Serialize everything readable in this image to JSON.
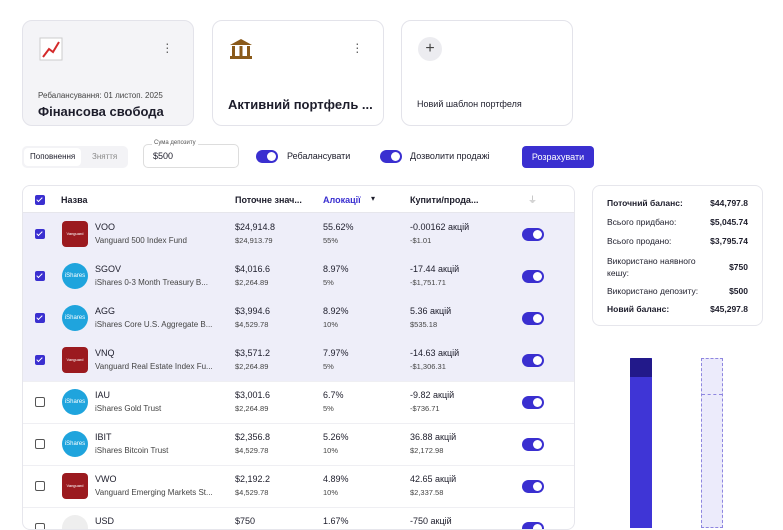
{
  "cards": [
    {
      "subtitle": "Ребалансування: 01 листоп. 2025",
      "title": "Фінансова свобода"
    },
    {
      "title": "Активний портфель ..."
    },
    {
      "title": "Новий шаблон портфеля"
    }
  ],
  "controls": {
    "tabs": [
      "Поповнення",
      "Зняття"
    ],
    "deposit_label": "Сума депозиту",
    "deposit_value": "$500",
    "rebalance": "Ребалансувати",
    "allow_sales": "Дозволити продажі",
    "button": "Розрахувати"
  },
  "table": {
    "headers": [
      "Назва",
      "Поточне знач...",
      "Алокації",
      "Купити/прода..."
    ],
    "rows": [
      {
        "checked": true,
        "logo": "Vanguard",
        "ticker": "VOO",
        "name": "Vanguard 500 Index Fund",
        "current": "$24,914.8",
        "current_sub": "$24,913.79",
        "alloc": "55.62%",
        "alloc_sub": "55%",
        "trade": "-0.00162 акцій",
        "trade_sub": "-$1.01"
      },
      {
        "checked": true,
        "logo": "iShares",
        "ticker": "SGOV",
        "name": "iShares 0-3 Month Treasury B...",
        "current": "$4,016.6",
        "current_sub": "$2,264.89",
        "alloc": "8.97%",
        "alloc_sub": "5%",
        "trade": "-17.44 акцій",
        "trade_sub": "-$1,751.71"
      },
      {
        "checked": true,
        "logo": "iShares",
        "ticker": "AGG",
        "name": "iShares Core U.S. Aggregate B...",
        "current": "$3,994.6",
        "current_sub": "$4,529.78",
        "alloc": "8.92%",
        "alloc_sub": "10%",
        "trade": "5.36 акцій",
        "trade_sub": "$535.18"
      },
      {
        "checked": true,
        "logo": "Vanguard",
        "ticker": "VNQ",
        "name": "Vanguard Real Estate Index Fu...",
        "current": "$3,571.2",
        "current_sub": "$2,264.89",
        "alloc": "7.97%",
        "alloc_sub": "5%",
        "trade": "-14.63 акцій",
        "trade_sub": "-$1,306.31"
      },
      {
        "checked": false,
        "logo": "iShares",
        "ticker": "IAU",
        "name": "iShares Gold Trust",
        "current": "$3,001.6",
        "current_sub": "$2,264.89",
        "alloc": "6.7%",
        "alloc_sub": "5%",
        "trade": "-9.82 акцій",
        "trade_sub": "-$736.71"
      },
      {
        "checked": false,
        "logo": "iShares",
        "ticker": "IBIT",
        "name": "iShares Bitcoin Trust",
        "current": "$2,356.8",
        "current_sub": "$4,529.78",
        "alloc": "5.26%",
        "alloc_sub": "10%",
        "trade": "36.88 акцій",
        "trade_sub": "$2,172.98"
      },
      {
        "checked": false,
        "logo": "Vanguard",
        "ticker": "VWO",
        "name": "Vanguard Emerging Markets St...",
        "current": "$2,192.2",
        "current_sub": "$4,529.78",
        "alloc": "4.89%",
        "alloc_sub": "10%",
        "trade": "42.65 акцій",
        "trade_sub": "$2,337.58"
      },
      {
        "checked": false,
        "ticker": "USD",
        "current": "$750",
        "alloc": "1.67%",
        "trade": "-750 акцій"
      }
    ]
  },
  "summary": [
    {
      "label": "Поточний баланс:",
      "value": "$44,797.8"
    },
    {
      "label": "Всього придбано:",
      "value": "$5,045.74"
    },
    {
      "label": "Всього продано:",
      "value": "$3,795.74"
    },
    {
      "label": "Використано наявного кешу:",
      "value": "$750"
    },
    {
      "label": "Використано депозиту:",
      "value": "$500"
    },
    {
      "label": "Новий баланс:",
      "value": "$45,297.8"
    }
  ]
}
